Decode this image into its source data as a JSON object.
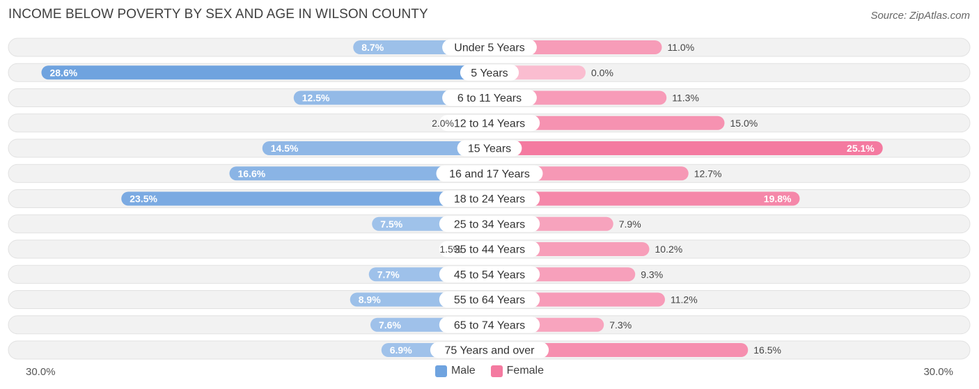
{
  "chart_data": {
    "type": "bar",
    "orientation": "horizontal-diverging",
    "title": "INCOME BELOW POVERTY BY SEX AND AGE IN WILSON COUNTY",
    "source": "Source: ZipAtlas.com",
    "categories": [
      "Under 5 Years",
      "5 Years",
      "6 to 11 Years",
      "12 to 14 Years",
      "15 Years",
      "16 and 17 Years",
      "18 to 24 Years",
      "25 to 34 Years",
      "35 to 44 Years",
      "45 to 54 Years",
      "55 to 64 Years",
      "65 to 74 Years",
      "75 Years and over"
    ],
    "series": [
      {
        "name": "Male",
        "color": "#6fa3df",
        "values": [
          8.7,
          28.6,
          12.5,
          2.0,
          14.5,
          16.6,
          23.5,
          7.5,
          1.5,
          7.7,
          8.9,
          7.6,
          6.9
        ],
        "labels": [
          "8.7%",
          "28.6%",
          "12.5%",
          "2.0%",
          "14.5%",
          "16.6%",
          "23.5%",
          "7.5%",
          "1.5%",
          "7.7%",
          "8.9%",
          "7.6%",
          "6.9%"
        ]
      },
      {
        "name": "Female",
        "color": "#f47aa0",
        "values": [
          11.0,
          0.0,
          11.3,
          15.0,
          25.1,
          12.7,
          19.8,
          7.9,
          10.2,
          9.3,
          11.2,
          7.3,
          16.5
        ],
        "labels": [
          "11.0%",
          "0.0%",
          "11.3%",
          "15.0%",
          "25.1%",
          "12.7%",
          "19.8%",
          "7.9%",
          "10.2%",
          "9.3%",
          "11.2%",
          "7.3%",
          "16.5%"
        ]
      }
    ],
    "xlim": [
      -30,
      30
    ],
    "axis_left_label": "30.0%",
    "axis_right_label": "30.0%",
    "legend_position": "bottom-center"
  }
}
